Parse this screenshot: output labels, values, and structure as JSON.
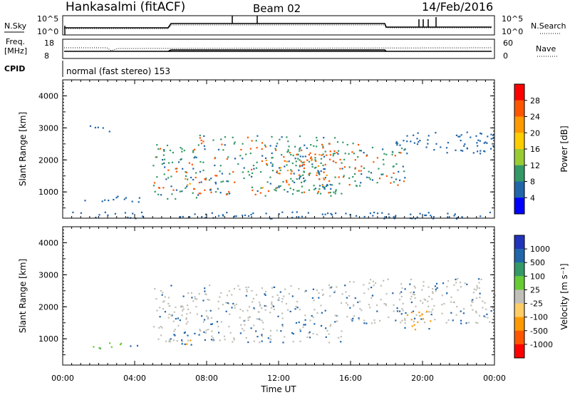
{
  "header": {
    "station": "Hankasalmi (fitACF)",
    "beam": "Beam 02",
    "date": "14/Feb/2016"
  },
  "summary_panels": {
    "nsky_label": "N.Sky",
    "nsearch_label": "N.Search",
    "nsky_ticks": [
      "10^5",
      "10^0"
    ],
    "nsearch_ticks": [
      "10^5",
      "10^0"
    ],
    "freq_label": [
      "Freq.",
      "[MHz]"
    ],
    "freq_ticks": [
      "18",
      "8"
    ],
    "nave_label": "Nave",
    "nave_ticks": [
      "60",
      "0"
    ],
    "cpid_label": "CPID",
    "cpid_text": "normal (fast stereo) 153"
  },
  "chart_data": [
    {
      "type": "heatmap",
      "name": "power",
      "ylabel": "Slant Range [km]",
      "xlabel": "",
      "xlim": [
        0,
        24
      ],
      "ylim": [
        180,
        4500
      ],
      "yticks": [
        "4000",
        "3000",
        "2000",
        "1000"
      ],
      "xticks": [
        "00:00",
        "04:00",
        "08:00",
        "12:00",
        "16:00",
        "20:00",
        "00:00"
      ],
      "colorbar": {
        "label": "Power [dB]",
        "ticks": [
          "28",
          "24",
          "20",
          "16",
          "12",
          "8",
          "4"
        ],
        "colors": [
          "#ff0000",
          "#ff5500",
          "#ff9900",
          "#ffcc00",
          "#99cc33",
          "#339966",
          "#2266aa",
          "#0000ff"
        ]
      },
      "features": [
        {
          "t0": 1.5,
          "t1": 2.8,
          "r0": 2850,
          "r1": 3100,
          "level": "low"
        },
        {
          "t0": 1.0,
          "t1": 4.5,
          "r0": 700,
          "r1": 900,
          "level": "low"
        },
        {
          "t0": 5.0,
          "t1": 7.5,
          "r0": 800,
          "r1": 2500,
          "level": "mid"
        },
        {
          "t0": 6.5,
          "t1": 7.3,
          "r0": 900,
          "r1": 1500,
          "level": "high"
        },
        {
          "t0": 7.5,
          "t1": 15.5,
          "r0": 900,
          "r1": 2800,
          "level": "mid"
        },
        {
          "t0": 11.0,
          "t1": 15.0,
          "r0": 1000,
          "r1": 2200,
          "level": "high"
        },
        {
          "t0": 15.5,
          "t1": 19.0,
          "r0": 1200,
          "r1": 2600,
          "level": "mid"
        },
        {
          "t0": 18.5,
          "t1": 24.0,
          "r0": 2200,
          "r1": 2900,
          "level": "low"
        },
        {
          "t0": 0.0,
          "t1": 24.0,
          "r0": 180,
          "r1": 400,
          "level": "low"
        }
      ]
    },
    {
      "type": "heatmap",
      "name": "velocity",
      "ylabel": "Slant Range [km]",
      "xlabel": "Time UT",
      "xlim": [
        0,
        24
      ],
      "ylim": [
        180,
        4500
      ],
      "yticks": [
        "4000",
        "3000",
        "2000",
        "1000"
      ],
      "xticks": [
        "00:00",
        "04:00",
        "08:00",
        "12:00",
        "16:00",
        "20:00",
        "00:00"
      ],
      "colorbar": {
        "label": "Velocity [m s⁻¹]",
        "ticks": [
          "1000",
          "500",
          "100",
          "25",
          "-25",
          "-100",
          "-500",
          "-1000"
        ],
        "colors": [
          "#2233bb",
          "#2266aa",
          "#339966",
          "#66cc33",
          "#c0c0b8",
          "#ffcc66",
          "#ff9900",
          "#ff5500",
          "#ff0000"
        ]
      },
      "features": [
        {
          "t0": 5.0,
          "t1": 15.5,
          "r0": 900,
          "r1": 2700,
          "level": "ground"
        },
        {
          "t0": 15.5,
          "t1": 24.0,
          "r0": 1500,
          "r1": 2900,
          "level": "ground"
        },
        {
          "t0": 6.5,
          "t1": 7.5,
          "r0": 800,
          "r1": 1300,
          "level": "neg"
        },
        {
          "t0": 18.8,
          "t1": 20.5,
          "r0": 1300,
          "r1": 1900,
          "level": "neg"
        },
        {
          "t0": 1.5,
          "t1": 4.5,
          "r0": 700,
          "r1": 900,
          "level": "pos"
        }
      ]
    }
  ],
  "colors": {
    "ground": "#c0c0b8",
    "low": "#2266aa",
    "mid": "#339966",
    "high": "#ff5500",
    "neg": "#ff9900",
    "pos": "#66cc33"
  }
}
